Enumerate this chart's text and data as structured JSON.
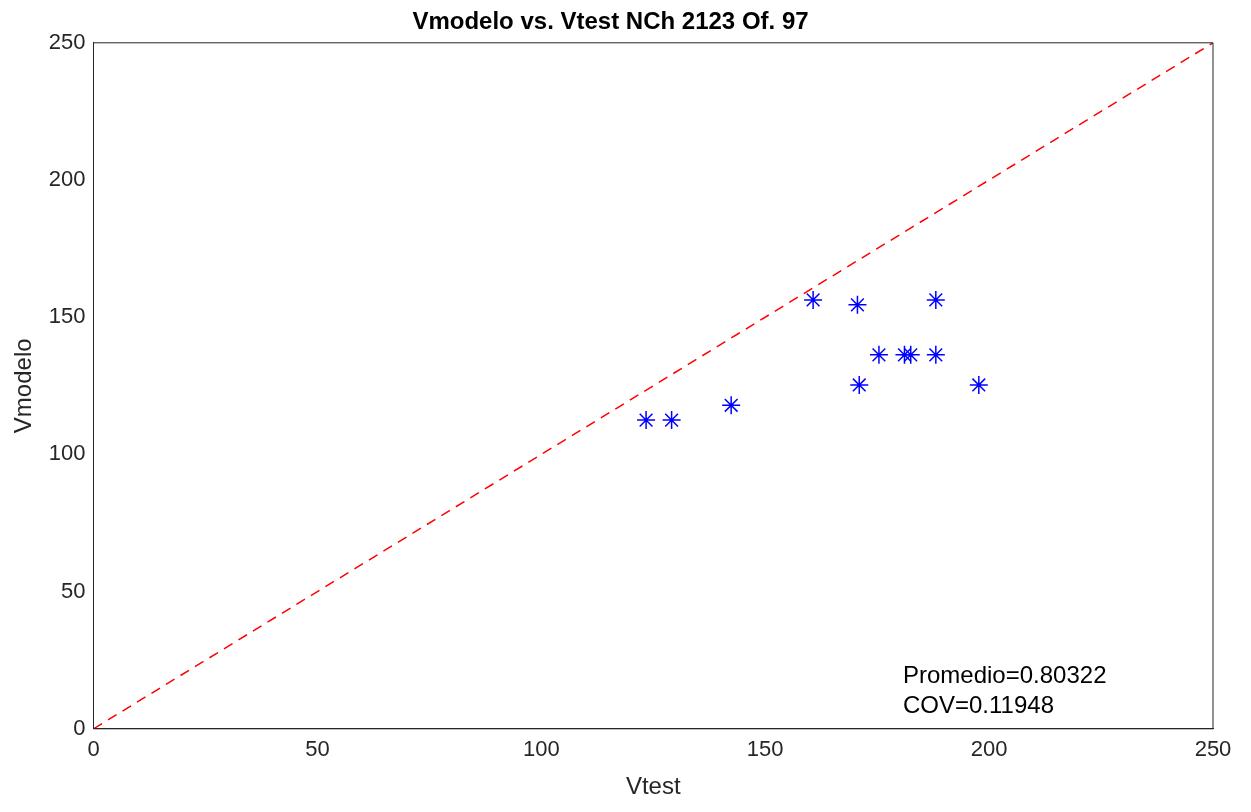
{
  "chart_data": {
    "type": "scatter",
    "title": "Vmodelo vs. Vtest NCh 2123 Of. 97",
    "xlabel": "Vtest",
    "ylabel": "Vmodelo",
    "xlim": [
      0,
      250
    ],
    "ylim": [
      0,
      250
    ],
    "xticks": [
      0,
      50,
      100,
      150,
      200,
      250
    ],
    "yticks": [
      0,
      50,
      100,
      150,
      200,
      250
    ],
    "grid": false,
    "legend": false,
    "annotations": [
      "Promedio=0.80322",
      "COV=0.11948"
    ],
    "series": [
      {
        "color": "#0000ff",
        "marker": "cross",
        "x": [
          123.4,
          129.1,
          142.4,
          160.7,
          170.6,
          171.0,
          175.4,
          181.1,
          182.5,
          188.1,
          188.1,
          197.7
        ],
        "values": [
          112.5,
          112.5,
          117.9,
          156.3,
          154.5,
          125.3,
          136.3,
          136.3,
          136.3,
          136.3,
          156.3,
          125.3
        ]
      },
      {
        "type": "line",
        "color": "#ff0000",
        "line_style": "dashed",
        "marker": "none",
        "x": [
          0,
          250
        ],
        "values": [
          0,
          250
        ]
      }
    ]
  }
}
